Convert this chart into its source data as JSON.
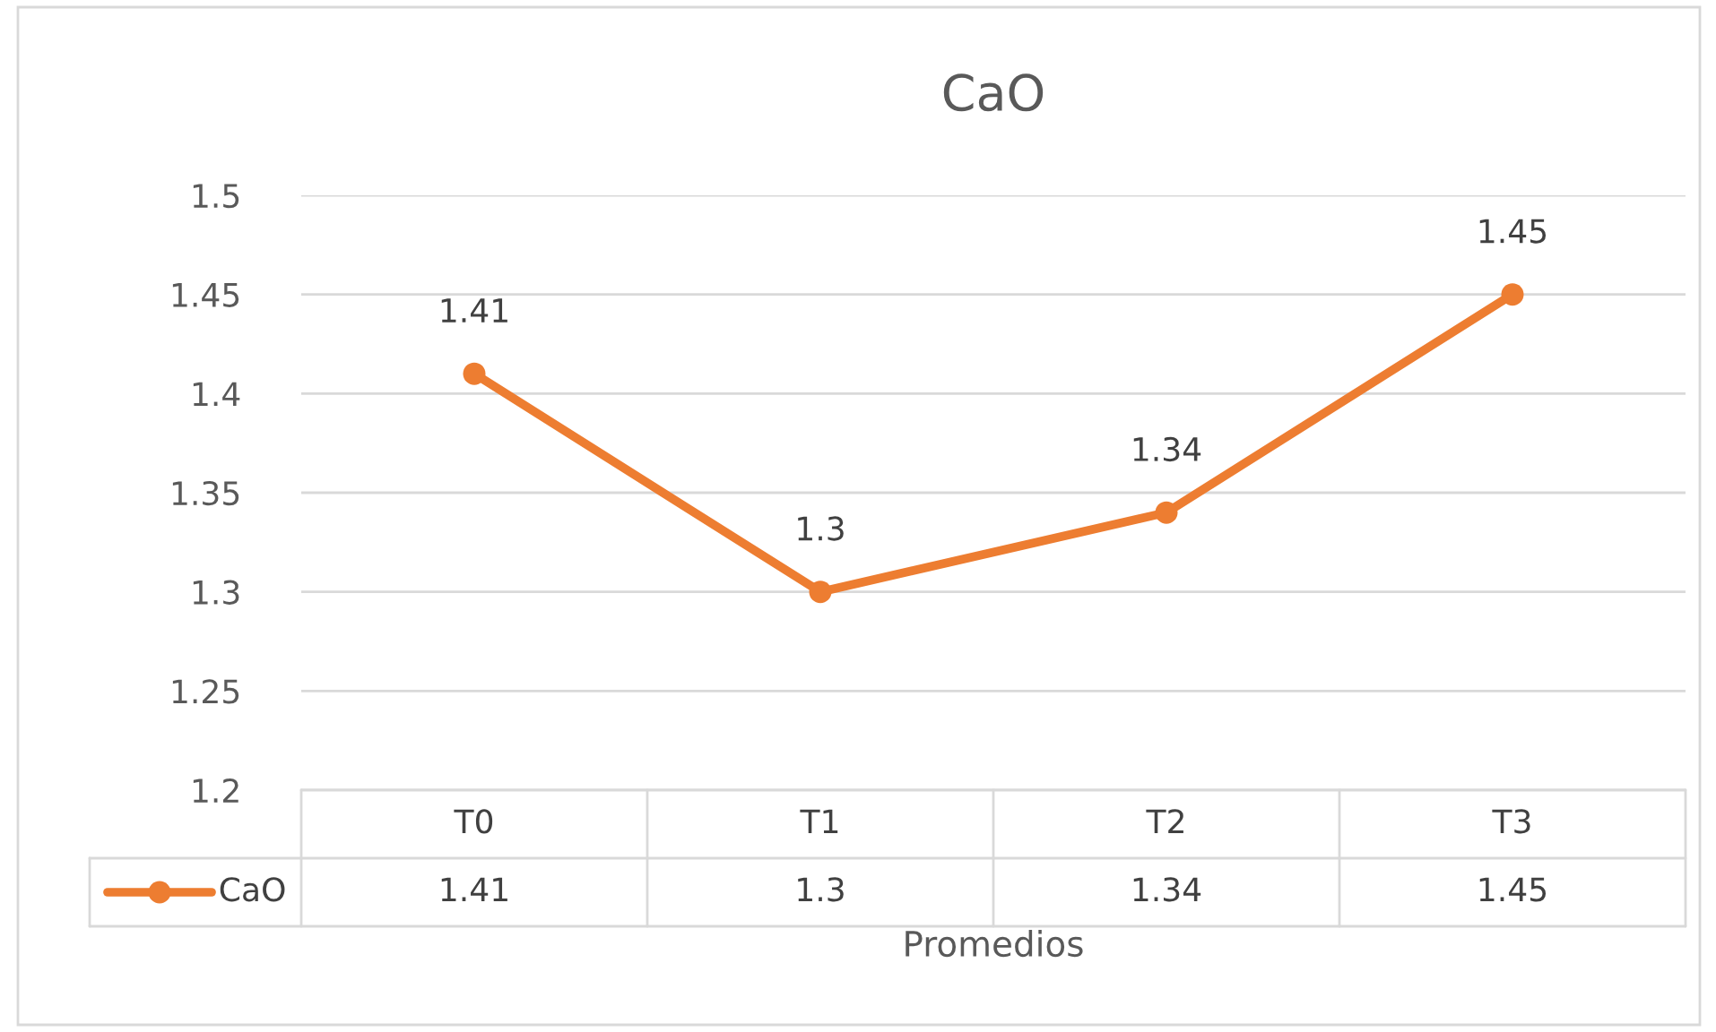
{
  "chart_data": {
    "type": "line",
    "title": "CaO",
    "xlabel": "Promedios",
    "categories": [
      "T0",
      "T1",
      "T2",
      "T3"
    ],
    "series": [
      {
        "name": "CaO",
        "color": "#ed7d31",
        "values": [
          1.41,
          1.3,
          1.34,
          1.45
        ]
      }
    ],
    "annotations": [
      "1.41",
      "1.3",
      "1.34",
      "1.45"
    ],
    "ylim": [
      1.2,
      1.5
    ],
    "yticks": [
      1.2,
      1.25,
      1.3,
      1.35,
      1.4,
      1.45,
      1.5
    ],
    "grid": "y",
    "marker": "circle",
    "line_style": "solid",
    "data_labels": true,
    "legend": "bottom left"
  }
}
